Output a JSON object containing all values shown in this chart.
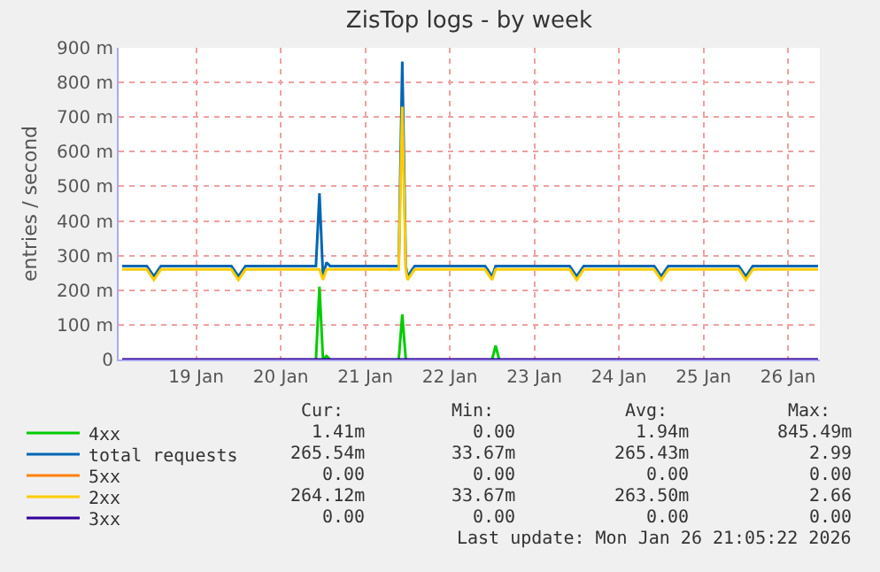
{
  "chart_data": {
    "type": "line",
    "title": "ZisTop logs - by week",
    "ylabel": "entries / second",
    "x": [
      "--01-18T15:00",
      "--01-18T20:00",
      "--01-18T22:00",
      "--01-19T00:00",
      "--01-19T02:00",
      "--01-19T08:00",
      "--01-19T14:00",
      "--01-19T20:00",
      "--01-19T22:00",
      "--01-20T00:00",
      "--01-20T02:00",
      "--01-20T08:00",
      "--01-20T14:00",
      "--01-20T20:00",
      "--01-20T22:00",
      "--01-20T23:00",
      "--01-21T00:00",
      "--01-21T01:00",
      "--01-21T02:00",
      "--01-21T08:00",
      "--01-21T14:00",
      "--01-21T20:00",
      "--01-21T21:30",
      "--01-21T22:30",
      "--01-21T23:30",
      "--01-22T00:00",
      "--01-22T02:00",
      "--01-22T08:00",
      "--01-22T14:00",
      "--01-22T20:00",
      "--01-22T22:00",
      "--01-23T00:00",
      "--01-23T01:00",
      "--01-23T02:00",
      "--01-23T08:00",
      "--01-23T14:00",
      "--01-23T20:00",
      "--01-23T22:00",
      "--01-24T00:00",
      "--01-24T02:00",
      "--01-24T08:00",
      "--01-24T14:00",
      "--01-24T20:00",
      "--01-24T22:00",
      "--01-25T00:00",
      "--01-25T02:00",
      "--01-25T08:00",
      "--01-25T14:00",
      "--01-25T20:00",
      "--01-25T22:00",
      "--01-26T00:00",
      "--01-26T02:00",
      "--01-26T08:00",
      "--01-26T14:00",
      "--01-26T20:30"
    ],
    "series": [
      {
        "name": "4xx",
        "color": "#00cc00",
        "values": [
          null,
          null,
          null,
          null,
          null,
          null,
          null,
          null,
          null,
          null,
          null,
          null,
          null,
          null,
          0,
          210,
          0,
          10,
          0,
          null,
          null,
          null,
          0,
          130,
          0,
          null,
          null,
          null,
          null,
          null,
          null,
          0,
          40,
          0,
          null,
          null,
          null,
          null,
          null,
          null,
          null,
          null,
          null,
          null,
          null,
          null,
          null,
          null,
          null,
          null,
          null,
          null,
          null,
          null,
          null
        ]
      },
      {
        "name": "total requests",
        "color": "#0066b3",
        "values": [
          270,
          270,
          270,
          240,
          270,
          270,
          270,
          270,
          270,
          240,
          270,
          270,
          270,
          270,
          270,
          480,
          240,
          280,
          270,
          270,
          270,
          270,
          270,
          860,
          270,
          240,
          270,
          270,
          270,
          270,
          270,
          240,
          270,
          270,
          270,
          270,
          270,
          270,
          240,
          270,
          270,
          270,
          270,
          270,
          240,
          270,
          270,
          270,
          270,
          270,
          240,
          270,
          270,
          270,
          270
        ]
      },
      {
        "name": "5xx",
        "color": "#ff8000",
        "values": [
          null,
          null,
          null,
          null,
          null,
          null,
          null,
          null,
          null,
          null,
          null,
          null,
          null,
          null,
          null,
          null,
          null,
          null,
          null,
          null,
          null,
          null,
          null,
          null,
          null,
          null,
          null,
          null,
          null,
          null,
          null,
          null,
          null,
          null,
          null,
          null,
          null,
          null,
          null,
          null,
          null,
          null,
          null,
          null,
          null,
          null,
          null,
          null,
          null,
          null,
          null,
          null,
          null,
          null,
          null
        ]
      },
      {
        "name": "2xx",
        "color": "#ffcc00",
        "values": [
          260,
          260,
          260,
          230,
          260,
          260,
          260,
          260,
          260,
          230,
          260,
          260,
          260,
          260,
          260,
          260,
          230,
          260,
          260,
          260,
          260,
          260,
          260,
          730,
          260,
          230,
          260,
          260,
          260,
          260,
          260,
          230,
          260,
          260,
          260,
          260,
          260,
          260,
          230,
          260,
          260,
          260,
          260,
          260,
          230,
          260,
          260,
          260,
          260,
          260,
          230,
          260,
          260,
          260,
          260
        ]
      },
      {
        "name": "3xx",
        "color": "#330099",
        "values": [
          0,
          0,
          0,
          0,
          0,
          0,
          0,
          0,
          0,
          0,
          0,
          0,
          0,
          0,
          0,
          0,
          0,
          0,
          0,
          0,
          0,
          0,
          0,
          0,
          0,
          0,
          0,
          0,
          0,
          0,
          0,
          0,
          0,
          0,
          0,
          0,
          0,
          0,
          0,
          0,
          0,
          0,
          0,
          0,
          0,
          0,
          0,
          0,
          0,
          0,
          0,
          0,
          0,
          0,
          0
        ]
      }
    ],
    "xlim": [
      "--01-18T14:00",
      "--01-26T21:00"
    ],
    "xticks": [
      {
        "value": "--01-19T12:00",
        "label": "19 Jan"
      },
      {
        "value": "--01-20T12:00",
        "label": "20 Jan"
      },
      {
        "value": "--01-21T12:00",
        "label": "21 Jan"
      },
      {
        "value": "--01-22T12:00",
        "label": "22 Jan"
      },
      {
        "value": "--01-23T12:00",
        "label": "23 Jan"
      },
      {
        "value": "--01-24T12:00",
        "label": "24 Jan"
      },
      {
        "value": "--01-25T12:00",
        "label": "25 Jan"
      },
      {
        "value": "--01-26T12:00",
        "label": "26 Jan"
      }
    ],
    "ylim": [
      0,
      900
    ],
    "yticks": [
      0,
      {
        "value": 100,
        "label": "100 m"
      },
      {
        "value": 200,
        "label": "200 m"
      },
      {
        "value": 300,
        "label": "300 m"
      },
      {
        "value": 400,
        "label": "400 m"
      },
      {
        "value": 500,
        "label": "500 m"
      },
      {
        "value": 600,
        "label": "600 m"
      },
      {
        "value": 700,
        "label": "700 m"
      },
      {
        "value": 800,
        "label": "800 m"
      },
      {
        "value": 900,
        "label": "900 m"
      }
    ],
    "grid": true,
    "legend": "bottom left",
    "marker": "none",
    "line_style": "solid",
    "annotations": [
      "Cur:",
      "Min:",
      "Avg:",
      "Max:",
      "1.41m",
      "0.00",
      "1.94m",
      "845.49m",
      "265.54m",
      "33.67m",
      "265.43m",
      "2.99",
      "0.00",
      "0.00",
      "0.00",
      "0.00",
      "264.12m",
      "33.67m",
      "263.50m",
      "2.66",
      "0.00",
      "0.00",
      "0.00",
      "0.00",
      "Last update: Mon Jan 26 21:05:22 2026"
    ]
  }
}
